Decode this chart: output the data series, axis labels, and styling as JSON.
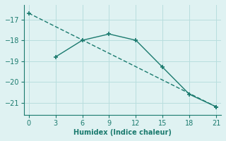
{
  "line1_x": [
    0,
    21
  ],
  "line1_y": [
    -16.7,
    -21.2
  ],
  "line2_x": [
    3,
    6,
    9,
    12,
    15,
    18,
    21
  ],
  "line2_y": [
    -18.8,
    -18.0,
    -17.7,
    -18.0,
    -19.3,
    -20.6,
    -21.2
  ],
  "xlabel": "Humidex (Indice chaleur)",
  "xlim": [
    -0.5,
    21.5
  ],
  "ylim": [
    -21.6,
    -16.3
  ],
  "xticks": [
    0,
    3,
    6,
    9,
    12,
    15,
    18,
    21
  ],
  "yticks": [
    -21,
    -20,
    -19,
    -18,
    -17
  ],
  "line_color": "#1a7a6e",
  "bg_color": "#dff2f2",
  "grid_color": "#b8dede"
}
